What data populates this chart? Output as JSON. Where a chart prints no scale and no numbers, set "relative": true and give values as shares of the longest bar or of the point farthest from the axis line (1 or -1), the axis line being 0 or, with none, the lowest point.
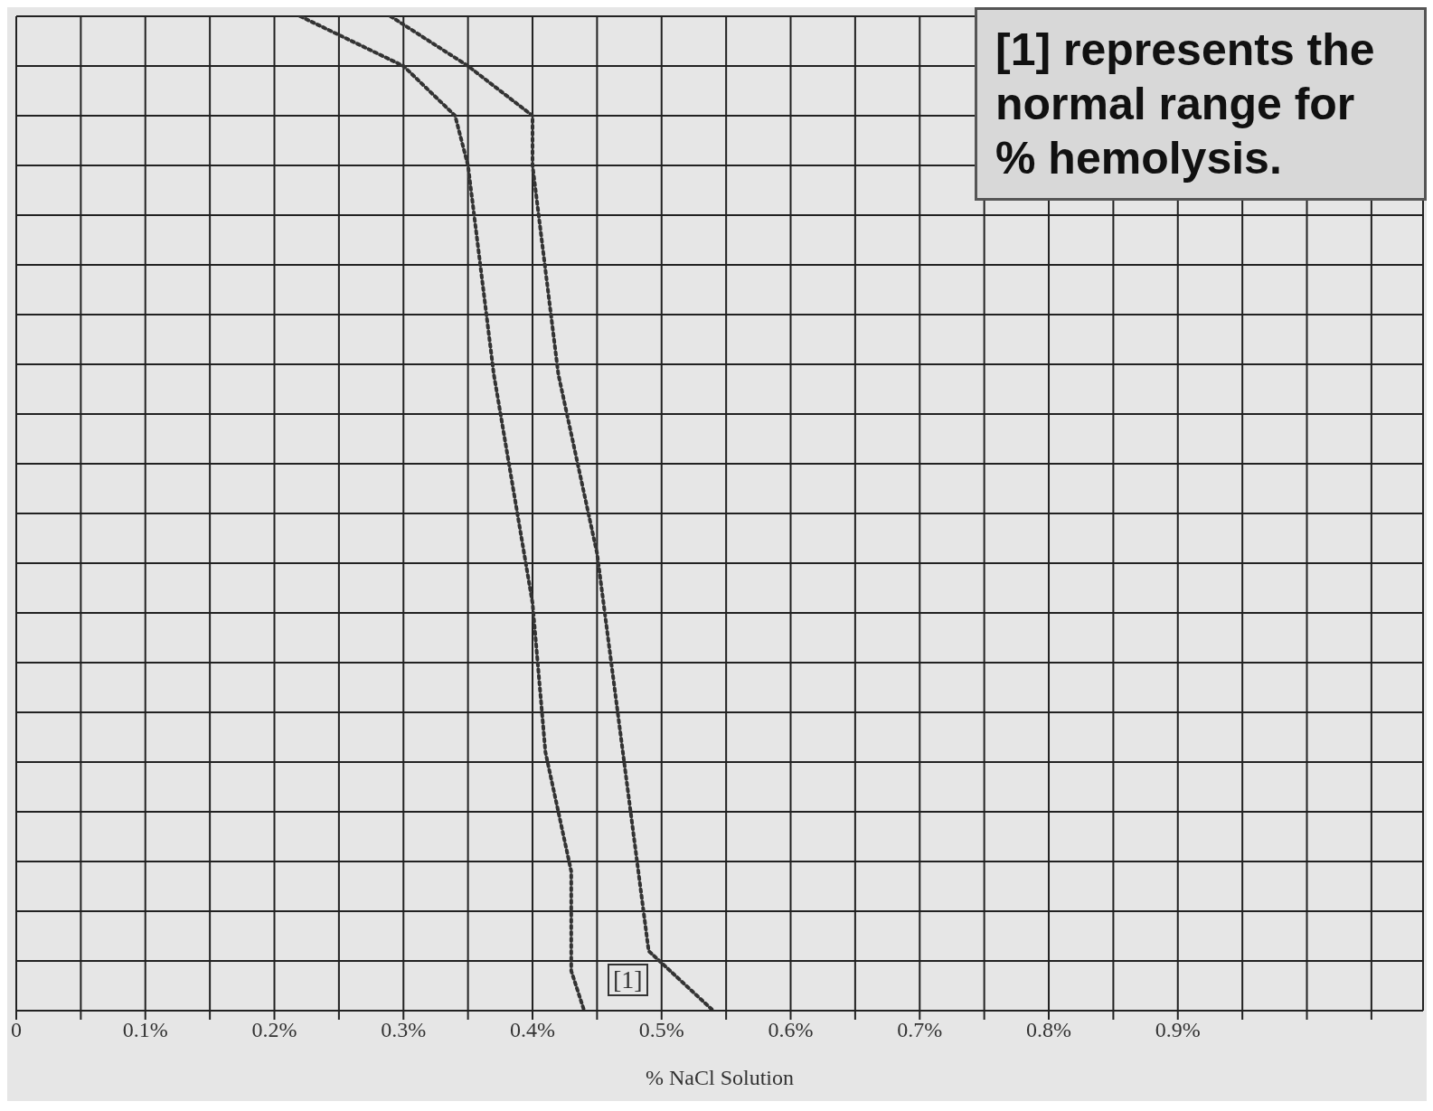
{
  "chart_data": {
    "type": "line",
    "relative": true,
    "xlabel": "% NaCl Solution",
    "xlim": [
      0,
      1.09
    ],
    "xticks": [
      0,
      {
        "value": 0.05,
        "label": null
      },
      {
        "value": 0.1,
        "label": "0.1%"
      },
      {
        "value": 0.15,
        "label": null
      },
      {
        "value": 0.2,
        "label": "0.2%"
      },
      {
        "value": 0.25,
        "label": null
      },
      {
        "value": 0.3,
        "label": "0.3%"
      },
      {
        "value": 0.35,
        "label": null
      },
      {
        "value": 0.4,
        "label": "0.4%"
      },
      {
        "value": 0.45,
        "label": null
      },
      {
        "value": 0.5,
        "label": "0.5%"
      },
      {
        "value": 0.55,
        "label": null
      },
      {
        "value": 0.6,
        "label": "0.6%"
      },
      {
        "value": 0.65,
        "label": null
      },
      {
        "value": 0.7,
        "label": "0.7%"
      },
      {
        "value": 0.75,
        "label": null
      },
      {
        "value": 0.8,
        "label": "0.8%"
      },
      {
        "value": 0.85,
        "label": null
      },
      {
        "value": 0.9,
        "label": "0.9%"
      },
      {
        "value": 0.95,
        "label": null
      },
      {
        "value": 1.0,
        "label": null
      },
      {
        "value": 1.05,
        "label": null
      }
    ],
    "grid": true,
    "legend": false,
    "marker": "none",
    "line_style": "dotted",
    "series": [
      {
        "color": "#333333",
        "x": [
          0.22,
          0.3,
          0.34,
          0.35,
          0.37,
          0.4,
          0.41,
          0.43,
          0.43,
          0.44
        ],
        "values": [
          1,
          0.95,
          0.9,
          0.85,
          0.64,
          0.41,
          0.26,
          0.14,
          0.04,
          0
        ]
      },
      {
        "color": "#333333",
        "x": [
          0.29,
          0.35,
          0.4,
          0.4,
          0.42,
          0.45,
          0.47,
          0.49,
          0.54
        ],
        "values": [
          1,
          0.95,
          0.9,
          0.85,
          0.64,
          0.46,
          0.26,
          0.06,
          0
        ]
      }
    ],
    "annotations": [
      "[1] represents the normal range for % hemolysis.",
      "[1]"
    ]
  }
}
